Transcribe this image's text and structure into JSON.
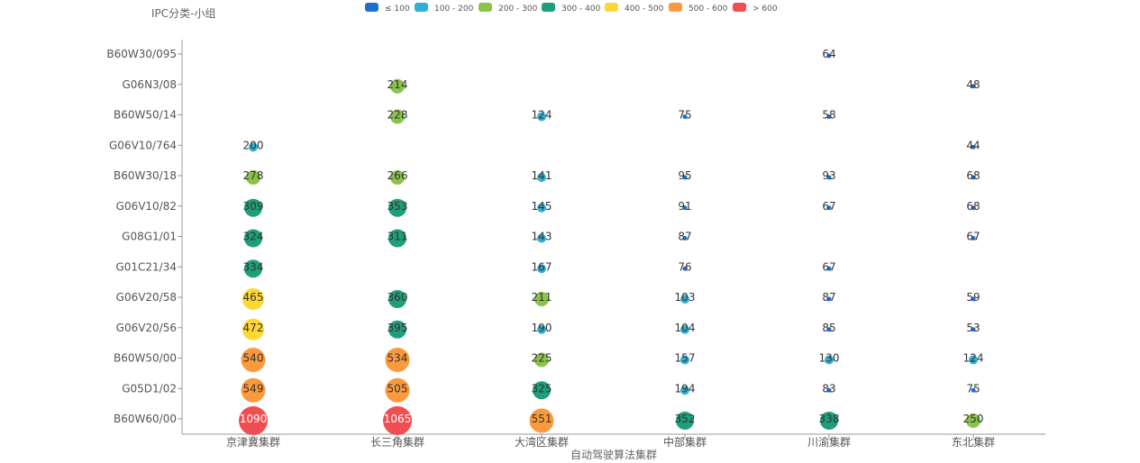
{
  "chart_data": {
    "type": "scatter",
    "subtype": "bubble",
    "ylabel": "IPC分类-小组",
    "xlabel": "自动驾驶算法集群",
    "categories_x": [
      "京津冀集群",
      "长三角集群",
      "大湾区集群",
      "中部集群",
      "川渝集群",
      "东北集群"
    ],
    "categories_y": [
      "B60W30/095",
      "G06N3/08",
      "B60W50/14",
      "G06V10/764",
      "B60W30/18",
      "G06V10/82",
      "G08G1/01",
      "G01C21/34",
      "G06V20/58",
      "G06V20/56",
      "B60W50/00",
      "G05D1/02",
      "B60W60/00"
    ],
    "legend": [
      {
        "label": "≤ 100",
        "color": "#1f6fd1"
      },
      {
        "label": "100 - 200",
        "color": "#2fb0d6"
      },
      {
        "label": "200 - 300",
        "color": "#8bc34a"
      },
      {
        "label": "300 - 400",
        "color": "#1e9e7a"
      },
      {
        "label": "400 - 500",
        "color": "#fdd835"
      },
      {
        "label": "500 - 600",
        "color": "#fb9a3c"
      },
      {
        "label": "> 600",
        "color": "#ef4f52"
      }
    ],
    "legend_position": "top-center",
    "grid": false,
    "points": [
      {
        "x": "川渝集群",
        "y": "B60W30/095",
        "value": 64
      },
      {
        "x": "长三角集群",
        "y": "G06N3/08",
        "value": 214
      },
      {
        "x": "东北集群",
        "y": "G06N3/08",
        "value": 48
      },
      {
        "x": "长三角集群",
        "y": "B60W50/14",
        "value": 228
      },
      {
        "x": "大湾区集群",
        "y": "B60W50/14",
        "value": 124
      },
      {
        "x": "中部集群",
        "y": "B60W50/14",
        "value": 75
      },
      {
        "x": "川渝集群",
        "y": "B60W50/14",
        "value": 58
      },
      {
        "x": "京津冀集群",
        "y": "G06V10/764",
        "value": 200
      },
      {
        "x": "东北集群",
        "y": "G06V10/764",
        "value": 44
      },
      {
        "x": "京津冀集群",
        "y": "B60W30/18",
        "value": 278
      },
      {
        "x": "长三角集群",
        "y": "B60W30/18",
        "value": 266
      },
      {
        "x": "大湾区集群",
        "y": "B60W30/18",
        "value": 141
      },
      {
        "x": "中部集群",
        "y": "B60W30/18",
        "value": 95
      },
      {
        "x": "川渝集群",
        "y": "B60W30/18",
        "value": 93
      },
      {
        "x": "东北集群",
        "y": "B60W30/18",
        "value": 68
      },
      {
        "x": "京津冀集群",
        "y": "G06V10/82",
        "value": 309
      },
      {
        "x": "长三角集群",
        "y": "G06V10/82",
        "value": 353
      },
      {
        "x": "大湾区集群",
        "y": "G06V10/82",
        "value": 145
      },
      {
        "x": "中部集群",
        "y": "G06V10/82",
        "value": 91
      },
      {
        "x": "川渝集群",
        "y": "G06V10/82",
        "value": 67
      },
      {
        "x": "东北集群",
        "y": "G06V10/82",
        "value": 68
      },
      {
        "x": "京津冀集群",
        "y": "G08G1/01",
        "value": 324
      },
      {
        "x": "长三角集群",
        "y": "G08G1/01",
        "value": 311
      },
      {
        "x": "大湾区集群",
        "y": "G08G1/01",
        "value": 143
      },
      {
        "x": "中部集群",
        "y": "G08G1/01",
        "value": 87
      },
      {
        "x": "东北集群",
        "y": "G08G1/01",
        "value": 67
      },
      {
        "x": "京津冀集群",
        "y": "G01C21/34",
        "value": 334
      },
      {
        "x": "大湾区集群",
        "y": "G01C21/34",
        "value": 167
      },
      {
        "x": "中部集群",
        "y": "G01C21/34",
        "value": 76
      },
      {
        "x": "川渝集群",
        "y": "G01C21/34",
        "value": 67
      },
      {
        "x": "京津冀集群",
        "y": "G06V20/58",
        "value": 465
      },
      {
        "x": "长三角集群",
        "y": "G06V20/58",
        "value": 360
      },
      {
        "x": "大湾区集群",
        "y": "G06V20/58",
        "value": 211
      },
      {
        "x": "中部集群",
        "y": "G06V20/58",
        "value": 103
      },
      {
        "x": "川渝集群",
        "y": "G06V20/58",
        "value": 87
      },
      {
        "x": "东北集群",
        "y": "G06V20/58",
        "value": 59
      },
      {
        "x": "京津冀集群",
        "y": "G06V20/56",
        "value": 472
      },
      {
        "x": "长三角集群",
        "y": "G06V20/56",
        "value": 395
      },
      {
        "x": "大湾区集群",
        "y": "G06V20/56",
        "value": 190
      },
      {
        "x": "中部集群",
        "y": "G06V20/56",
        "value": 104
      },
      {
        "x": "川渝集群",
        "y": "G06V20/56",
        "value": 85
      },
      {
        "x": "东北集群",
        "y": "G06V20/56",
        "value": 53
      },
      {
        "x": "京津冀集群",
        "y": "B60W50/00",
        "value": 540
      },
      {
        "x": "长三角集群",
        "y": "B60W50/00",
        "value": 534
      },
      {
        "x": "大湾区集群",
        "y": "B60W50/00",
        "value": 225
      },
      {
        "x": "中部集群",
        "y": "B60W50/00",
        "value": 157
      },
      {
        "x": "川渝集群",
        "y": "B60W50/00",
        "value": 130
      },
      {
        "x": "东北集群",
        "y": "B60W50/00",
        "value": 124
      },
      {
        "x": "京津冀集群",
        "y": "G05D1/02",
        "value": 549
      },
      {
        "x": "长三角集群",
        "y": "G05D1/02",
        "value": 505
      },
      {
        "x": "大湾区集群",
        "y": "G05D1/02",
        "value": 325
      },
      {
        "x": "中部集群",
        "y": "G05D1/02",
        "value": 194
      },
      {
        "x": "川渝集群",
        "y": "G05D1/02",
        "value": 83
      },
      {
        "x": "东北集群",
        "y": "G05D1/02",
        "value": 75
      },
      {
        "x": "京津冀集群",
        "y": "B60W60/00",
        "value": 1090
      },
      {
        "x": "长三角集群",
        "y": "B60W60/00",
        "value": 1065
      },
      {
        "x": "大湾区集群",
        "y": "B60W60/00",
        "value": 551
      },
      {
        "x": "中部集群",
        "y": "B60W60/00",
        "value": 352
      },
      {
        "x": "川渝集群",
        "y": "B60W60/00",
        "value": 338
      },
      {
        "x": "东北集群",
        "y": "B60W60/00",
        "value": 250
      }
    ]
  }
}
